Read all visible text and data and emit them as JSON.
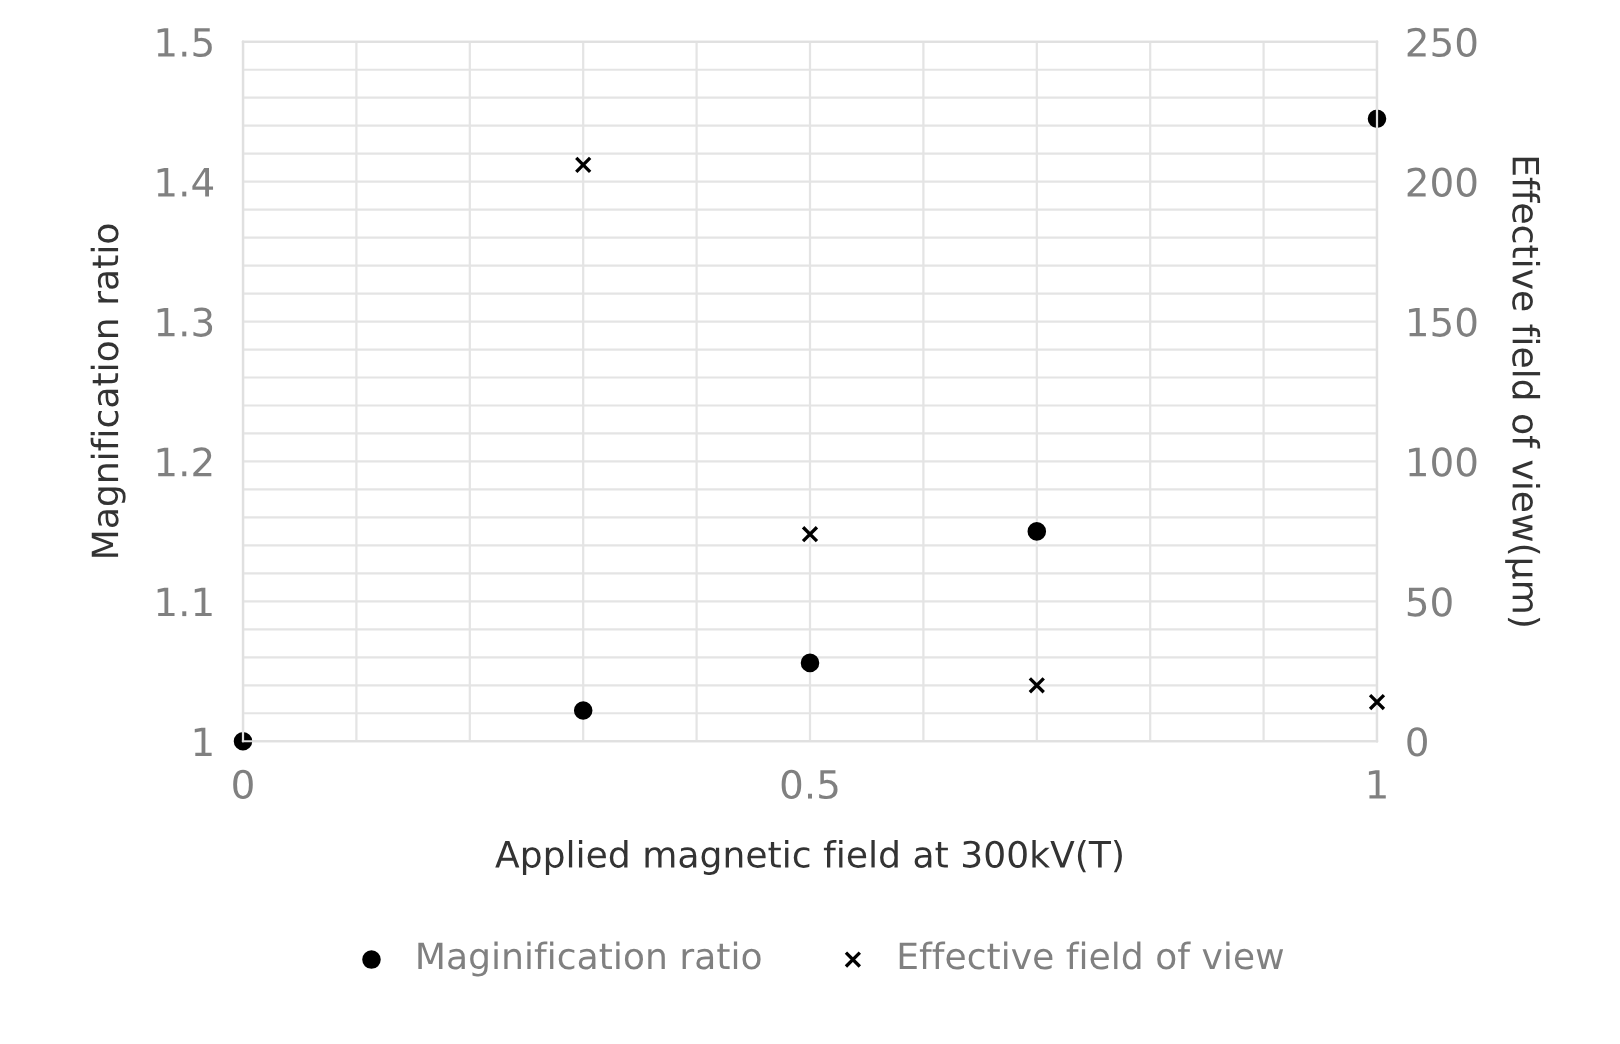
{
  "chart_data": {
    "type": "scatter",
    "xlabel": "Applied magnetic field at 300kV(T)",
    "ylabel": "Magnification ratio",
    "y2label": "Effective field of view(μm)",
    "x": [
      0,
      0.3,
      0.5,
      0.7,
      1
    ],
    "series": [
      {
        "name": "Maginification ratio",
        "color": "#000000",
        "marker": "circle",
        "values": [
          1.0,
          1.022,
          1.056,
          1.15,
          1.445
        ]
      },
      {
        "name": "Effective field of view",
        "color": "#000000",
        "marker": "cross",
        "axis": "y2",
        "x": [
          0.3,
          0.5,
          0.7,
          1
        ],
        "values": [
          206,
          74,
          20,
          14
        ]
      }
    ],
    "xlim": [
      0,
      1
    ],
    "xticks": [
      0,
      0.5,
      1
    ],
    "ylim": [
      1,
      1.5
    ],
    "yticks": [
      1,
      1.1,
      1.2,
      1.3,
      1.4,
      1.5
    ],
    "y2lim": [
      0,
      250
    ],
    "y2ticks": [
      0,
      50,
      100,
      150,
      200,
      250
    ],
    "grid": true,
    "legend": "bottom"
  }
}
